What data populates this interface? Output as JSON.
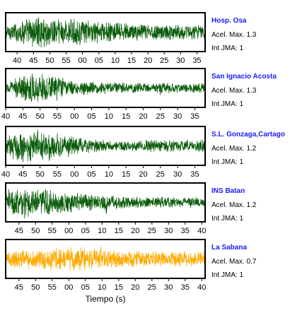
{
  "figure": {
    "xlabel": "Tiempo (s)"
  },
  "colors": {
    "station_name": "#1a1aff",
    "trace_default": "#0b5d0b",
    "trace_highlight": "#ffaa00"
  },
  "chart_data": {
    "type": "line",
    "xlabel": "Tiempo (s)",
    "grid": false,
    "legend": "none",
    "panels": [
      {
        "station": "Hosp. Osa",
        "max_accel": "Acel. Max. 1.3",
        "intensity": "Int JMA: 1",
        "x_ticks": [
          "40",
          "45",
          "50",
          "55",
          "00",
          "05",
          "10",
          "15",
          "20",
          "25",
          "30",
          "35"
        ],
        "x_tick_seconds": [
          40,
          45,
          50,
          55,
          60,
          65,
          70,
          75,
          80,
          85,
          90,
          95
        ],
        "x_range_seconds": [
          36.5,
          97.5
        ],
        "color": "#0b5d0b",
        "envelope": {
          "t": [
            36.5,
            40,
            45,
            50,
            55,
            60,
            70,
            80,
            97.5
          ],
          "a": [
            0.4,
            0.65,
            0.95,
            1.0,
            0.85,
            0.75,
            0.6,
            0.5,
            0.45
          ]
        },
        "spikes": []
      },
      {
        "station": "San Ignacio Acosta",
        "max_accel": "Acel. Max. 1.3",
        "intensity": "Int JMA: 1",
        "x_ticks": [
          "40",
          "45",
          "50",
          "55",
          "00",
          "05",
          "10",
          "15",
          "20",
          "25",
          "30",
          "35"
        ],
        "x_tick_seconds": [
          40,
          45,
          50,
          55,
          60,
          65,
          70,
          75,
          80,
          85,
          90,
          95
        ],
        "x_range_seconds": [
          40,
          98
        ],
        "color": "#0b5d0b",
        "envelope": {
          "t": [
            40,
            43,
            47,
            52,
            56,
            60,
            70,
            80,
            98
          ],
          "a": [
            0.35,
            0.6,
            0.9,
            0.85,
            0.65,
            0.45,
            0.35,
            0.3,
            0.28
          ]
        },
        "spikes": [
          {
            "t": 54.8,
            "a": 1.0
          },
          {
            "t": 84.8,
            "a": 0.6
          }
        ]
      },
      {
        "station": "S.L. Gonzaga,Cartago",
        "max_accel": "Acel. Max. 1.2",
        "intensity": "Int JMA: 1",
        "x_ticks": [
          "40",
          "45",
          "50",
          "55",
          "00",
          "05",
          "10",
          "15",
          "20",
          "25",
          "30",
          "35"
        ],
        "x_tick_seconds": [
          40,
          45,
          50,
          55,
          60,
          65,
          70,
          75,
          80,
          85,
          90,
          95
        ],
        "x_range_seconds": [
          40,
          98
        ],
        "color": "#0b5d0b",
        "envelope": {
          "t": [
            40,
            43,
            48,
            53,
            57,
            62,
            70,
            80,
            98
          ],
          "a": [
            0.5,
            0.95,
            1.0,
            0.9,
            0.75,
            0.45,
            0.35,
            0.35,
            0.4
          ]
        },
        "spikes": []
      },
      {
        "station": "INS Batan",
        "max_accel": "Acel. Max. 1.2",
        "intensity": "Int JMA: 1",
        "x_ticks": [
          "45",
          "50",
          "55",
          "00",
          "05",
          "10",
          "15",
          "20",
          "25",
          "30",
          "35",
          "40"
        ],
        "x_tick_seconds": [
          45,
          50,
          55,
          60,
          65,
          70,
          75,
          80,
          85,
          90,
          95,
          100
        ],
        "x_range_seconds": [
          41,
          101
        ],
        "color": "#0b5d0b",
        "envelope": {
          "t": [
            41,
            44,
            49,
            54,
            58,
            63,
            70,
            80,
            101
          ],
          "a": [
            0.7,
            1.0,
            0.95,
            0.85,
            0.7,
            0.6,
            0.45,
            0.35,
            0.3
          ]
        },
        "spikes": [
          {
            "t": 71.2,
            "a": 0.9
          }
        ]
      },
      {
        "station": "La Sabana",
        "max_accel": "Acel. Max. 0.7",
        "intensity": "Int JMA: 1",
        "x_ticks": [
          "45",
          "50",
          "55",
          "00",
          "05",
          "10",
          "15",
          "20",
          "25",
          "30",
          "35",
          "40"
        ],
        "x_tick_seconds": [
          45,
          50,
          55,
          60,
          65,
          70,
          75,
          80,
          85,
          90,
          95,
          100
        ],
        "x_range_seconds": [
          41,
          101
        ],
        "color": "#ffaa00",
        "envelope": {
          "t": [
            41,
            44,
            50,
            55,
            60,
            65,
            70,
            80,
            101
          ],
          "a": [
            0.45,
            0.6,
            0.65,
            0.7,
            0.75,
            0.7,
            0.6,
            0.5,
            0.45
          ]
        },
        "spikes": [
          {
            "t": 69.5,
            "a": 1.0
          },
          {
            "t": 71.0,
            "a": 0.85
          },
          {
            "t": 97.0,
            "a": 0.7
          }
        ]
      }
    ]
  }
}
